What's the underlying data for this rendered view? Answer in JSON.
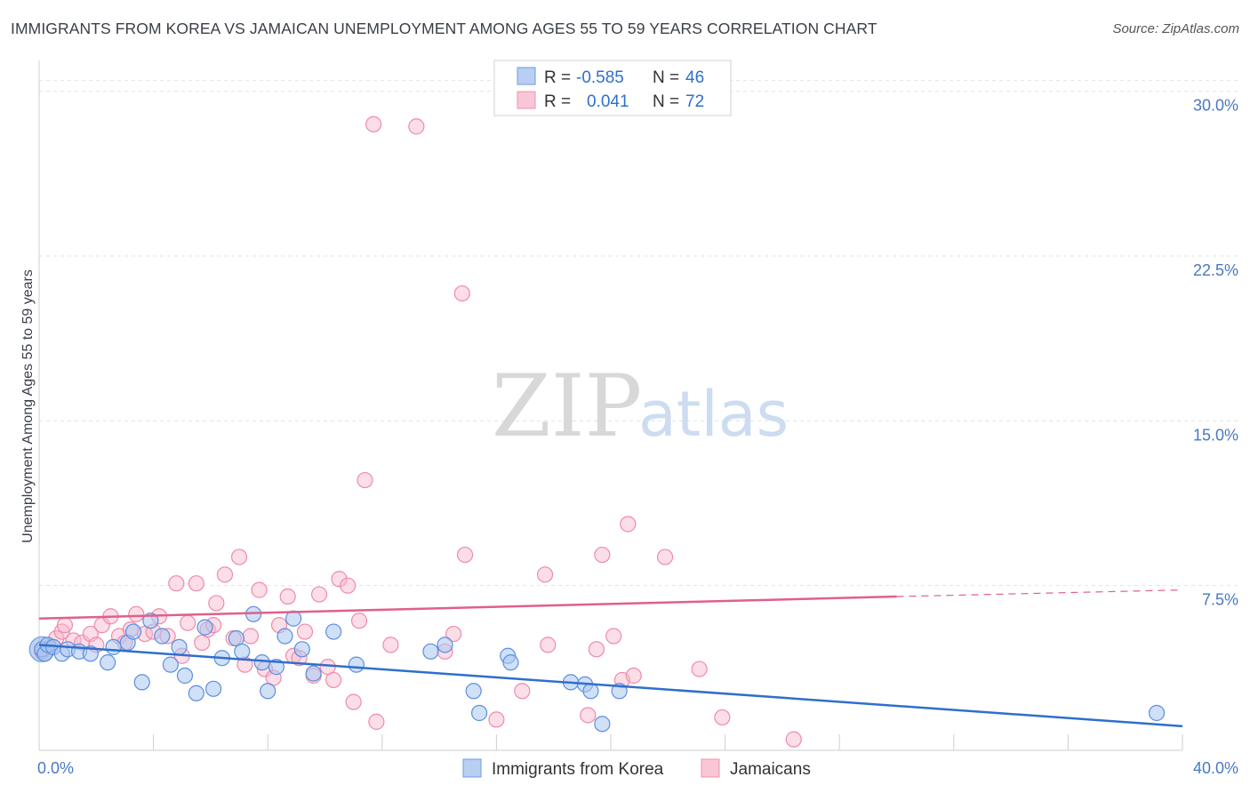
{
  "title": "IMMIGRANTS FROM KOREA VS JAMAICAN UNEMPLOYMENT AMONG AGES 55 TO 59 YEARS CORRELATION CHART",
  "source": "Source: ZipAtlas.com",
  "watermark": {
    "zip": "ZIP",
    "atlas": "atlas"
  },
  "colors": {
    "blue": "#5b8fe0",
    "blue_line": "#2f6fcc",
    "pink": "#f08aaa",
    "pink_line": "#e0608a",
    "grid": "#e3e3e3"
  },
  "legend": {
    "rows": [
      {
        "r_label": "R =",
        "r_value": "-0.585",
        "n_label": "N =",
        "n_value": "46"
      },
      {
        "r_label": "R =",
        "r_value": "0.041",
        "n_label": "N =",
        "n_value": "72"
      }
    ]
  },
  "chart_data": {
    "type": "scatter",
    "title": "IMMIGRANTS FROM KOREA VS JAMAICAN UNEMPLOYMENT AMONG AGES 55 TO 59 YEARS CORRELATION CHART",
    "xlabel": "",
    "ylabel": "Unemployment Among Ages 55 to 59 years",
    "xlim": [
      0,
      40
    ],
    "ylim": [
      0,
      31
    ],
    "x_tick_labels": [
      "0.0%",
      "40.0%"
    ],
    "y_ticks": [
      7.5,
      15.0,
      22.5,
      30.0
    ],
    "y_tick_labels": [
      "7.5%",
      "15.0%",
      "22.5%",
      "30.0%"
    ],
    "series": [
      {
        "name": "Immigrants from Korea",
        "color": "#5b8fe0",
        "r": -0.585,
        "n": 46,
        "trend": {
          "x0": 0,
          "y0": 4.8,
          "x1": 40,
          "y1": 1.1
        },
        "points": [
          [
            0.1,
            4.6
          ],
          [
            0.2,
            4.4
          ],
          [
            0.3,
            4.8
          ],
          [
            0.5,
            4.7
          ],
          [
            0.8,
            4.4
          ],
          [
            1.0,
            4.6
          ],
          [
            1.4,
            4.5
          ],
          [
            1.8,
            4.4
          ],
          [
            2.4,
            4.0
          ],
          [
            2.6,
            4.7
          ],
          [
            3.1,
            4.9
          ],
          [
            3.3,
            5.4
          ],
          [
            3.6,
            3.1
          ],
          [
            3.9,
            5.9
          ],
          [
            4.3,
            5.2
          ],
          [
            4.6,
            3.9
          ],
          [
            4.9,
            4.7
          ],
          [
            5.1,
            3.4
          ],
          [
            5.5,
            2.6
          ],
          [
            5.8,
            5.6
          ],
          [
            6.1,
            2.8
          ],
          [
            6.4,
            4.2
          ],
          [
            6.9,
            5.1
          ],
          [
            7.1,
            4.5
          ],
          [
            7.5,
            6.2
          ],
          [
            7.8,
            4.0
          ],
          [
            8.0,
            2.7
          ],
          [
            8.3,
            3.8
          ],
          [
            8.6,
            5.2
          ],
          [
            8.9,
            6.0
          ],
          [
            9.2,
            4.6
          ],
          [
            9.6,
            3.5
          ],
          [
            10.3,
            5.4
          ],
          [
            11.1,
            3.9
          ],
          [
            13.7,
            4.5
          ],
          [
            14.2,
            4.8
          ],
          [
            15.2,
            2.7
          ],
          [
            15.4,
            1.7
          ],
          [
            16.4,
            4.3
          ],
          [
            16.5,
            4.0
          ],
          [
            18.6,
            3.1
          ],
          [
            19.1,
            3.0
          ],
          [
            19.3,
            2.7
          ],
          [
            19.7,
            1.2
          ],
          [
            20.3,
            2.7
          ],
          [
            39.1,
            1.7
          ]
        ]
      },
      {
        "name": "Jamaicans",
        "color": "#f08aaa",
        "r": 0.041,
        "n": 72,
        "trend": {
          "x0": 0,
          "y0": 6.0,
          "x1": 30,
          "y1": 7.0
        },
        "trend_dashed": {
          "x0": 30,
          "y0": 7.0,
          "x1": 40,
          "y1": 7.3
        },
        "points": [
          [
            0.1,
            4.5
          ],
          [
            0.4,
            4.7
          ],
          [
            0.6,
            5.1
          ],
          [
            0.8,
            5.4
          ],
          [
            0.9,
            5.7
          ],
          [
            1.2,
            5.0
          ],
          [
            1.5,
            4.9
          ],
          [
            1.8,
            5.3
          ],
          [
            2.0,
            4.8
          ],
          [
            2.2,
            5.7
          ],
          [
            2.5,
            6.1
          ],
          [
            2.8,
            5.2
          ],
          [
            3.0,
            4.9
          ],
          [
            3.2,
            5.5
          ],
          [
            3.4,
            6.2
          ],
          [
            3.7,
            5.3
          ],
          [
            4.0,
            5.4
          ],
          [
            4.2,
            6.1
          ],
          [
            4.5,
            5.2
          ],
          [
            4.8,
            7.6
          ],
          [
            5.0,
            4.3
          ],
          [
            5.2,
            5.8
          ],
          [
            5.5,
            7.6
          ],
          [
            5.7,
            4.9
          ],
          [
            5.9,
            5.5
          ],
          [
            6.1,
            5.7
          ],
          [
            6.2,
            6.7
          ],
          [
            6.5,
            8.0
          ],
          [
            6.8,
            5.1
          ],
          [
            7.0,
            8.8
          ],
          [
            7.2,
            3.9
          ],
          [
            7.4,
            5.2
          ],
          [
            7.7,
            7.3
          ],
          [
            7.9,
            3.7
          ],
          [
            8.2,
            3.3
          ],
          [
            8.4,
            5.7
          ],
          [
            8.7,
            7.0
          ],
          [
            8.9,
            4.3
          ],
          [
            9.1,
            4.2
          ],
          [
            9.3,
            5.4
          ],
          [
            9.6,
            3.4
          ],
          [
            9.8,
            7.1
          ],
          [
            10.1,
            3.8
          ],
          [
            10.3,
            3.2
          ],
          [
            10.5,
            7.8
          ],
          [
            10.8,
            7.5
          ],
          [
            11.0,
            2.2
          ],
          [
            11.2,
            5.9
          ],
          [
            11.4,
            12.3
          ],
          [
            11.8,
            1.3
          ],
          [
            12.3,
            4.8
          ],
          [
            11.7,
            28.5
          ],
          [
            13.2,
            28.4
          ],
          [
            14.2,
            4.5
          ],
          [
            14.5,
            5.3
          ],
          [
            14.8,
            20.8
          ],
          [
            14.9,
            8.9
          ],
          [
            16.0,
            1.4
          ],
          [
            16.9,
            2.7
          ],
          [
            17.7,
            8.0
          ],
          [
            17.8,
            4.8
          ],
          [
            19.2,
            1.6
          ],
          [
            19.5,
            4.6
          ],
          [
            19.7,
            8.9
          ],
          [
            20.1,
            5.2
          ],
          [
            20.4,
            3.2
          ],
          [
            20.6,
            10.3
          ],
          [
            20.8,
            3.4
          ],
          [
            21.9,
            8.8
          ],
          [
            23.1,
            3.7
          ],
          [
            23.9,
            1.5
          ],
          [
            26.4,
            0.5
          ]
        ]
      }
    ],
    "legend_position": "top-center",
    "bottom_legend": [
      "Immigrants from Korea",
      "Jamaicans"
    ]
  }
}
